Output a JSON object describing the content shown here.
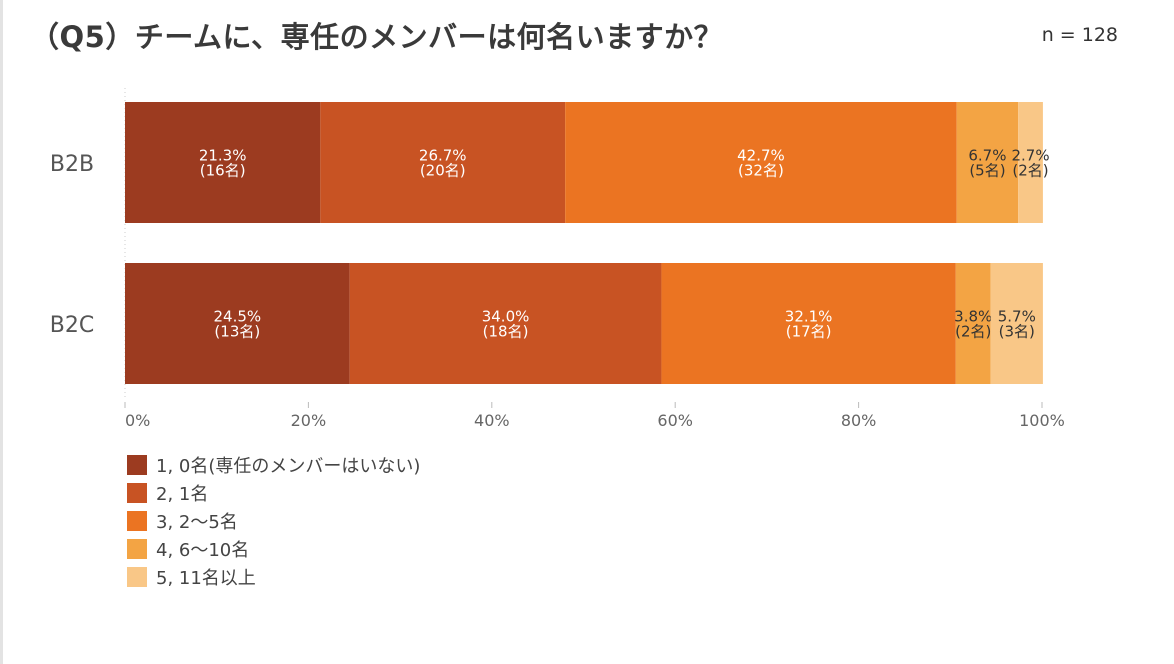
{
  "header": {
    "title": "（Q5）チームに、専任のメンバーは何名いますか？",
    "sample_size": "n = 128"
  },
  "chart_data": {
    "type": "bar",
    "orientation": "horizontal",
    "stacked": true,
    "title": "（Q5）チームに、専任のメンバーは何名いますか？",
    "categories": [
      "B2B",
      "B2C"
    ],
    "xlim": [
      0,
      100
    ],
    "x_ticks": [
      "0%",
      "20%",
      "40%",
      "60%",
      "80%",
      "100%"
    ],
    "grid": false,
    "legend_position": "bottom-left",
    "series": [
      {
        "name": "1, 0名(専任のメンバーはいない)",
        "color": "#9c3b20",
        "values": [
          21.3,
          24.5
        ],
        "labels": [
          "21.3%",
          "24.5%"
        ],
        "counts": [
          "(16名)",
          "(13名)"
        ]
      },
      {
        "name": "2, 1名",
        "color": "#c85323",
        "values": [
          26.7,
          34.0
        ],
        "labels": [
          "26.7%",
          "34.0%"
        ],
        "counts": [
          "(20名)",
          "(18名)"
        ]
      },
      {
        "name": "3, 2～5名",
        "color": "#eb7422",
        "values": [
          42.7,
          32.1
        ],
        "labels": [
          "42.7%",
          "32.1%"
        ],
        "counts": [
          "(32名)",
          "(17名)"
        ]
      },
      {
        "name": "4, 6～10名",
        "color": "#f3a444",
        "values": [
          6.7,
          3.8
        ],
        "labels": [
          "6.7%",
          "3.8%"
        ],
        "counts": [
          "(5名)",
          "(2名)"
        ]
      },
      {
        "name": "5, 11名以上",
        "color": "#f9c787",
        "values": [
          2.7,
          5.7
        ],
        "labels": [
          "2.7%",
          "5.7%"
        ],
        "counts": [
          "(2名)",
          "(3名)"
        ]
      }
    ]
  }
}
